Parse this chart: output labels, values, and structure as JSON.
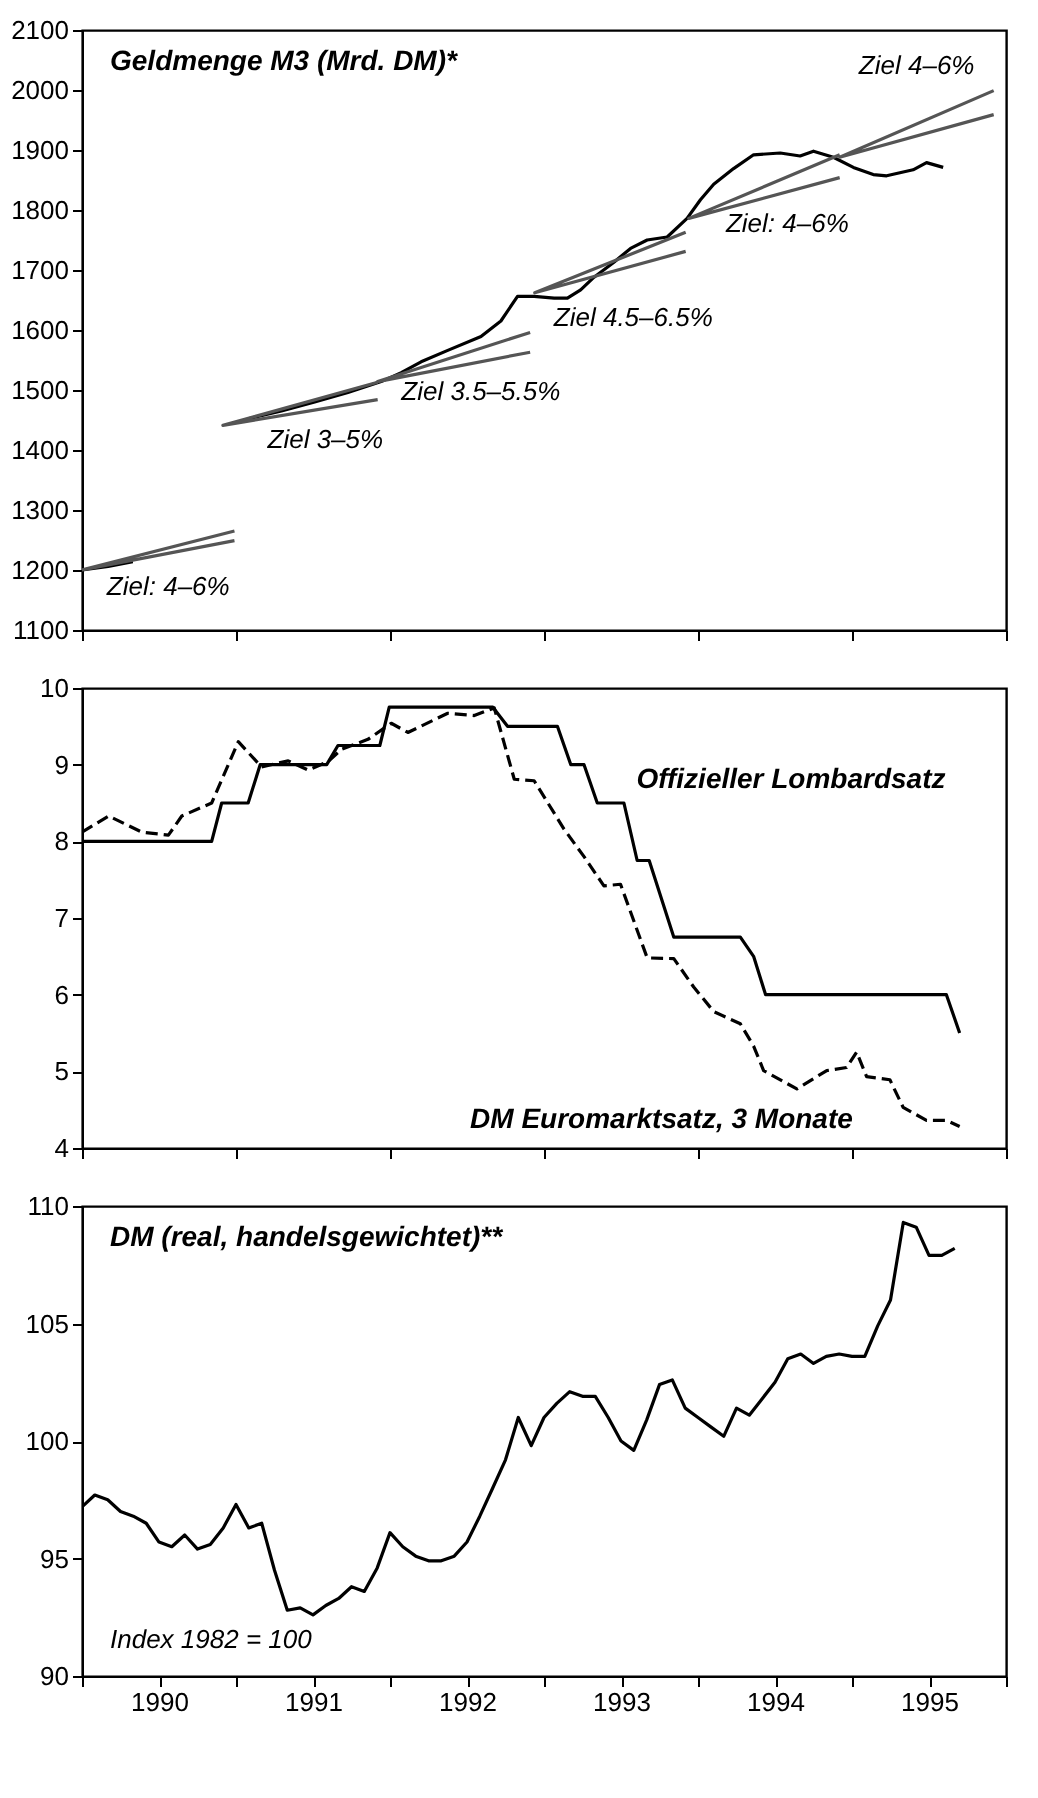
{
  "chart_data": [
    {
      "type": "line",
      "title": "Geldmenge M3 (Mrd. DM)*",
      "xlim": [
        1990,
        1996
      ],
      "ylim": [
        1100,
        2100
      ],
      "yticks": [
        1100,
        1200,
        1300,
        1400,
        1500,
        1600,
        1700,
        1800,
        1900,
        2000,
        2100
      ],
      "xticks": [
        {
          "value": 1990,
          "label": null
        },
        {
          "value": 1991,
          "label": null
        },
        {
          "value": 1992,
          "label": null
        },
        {
          "value": 1993,
          "label": null
        },
        {
          "value": 1994,
          "label": null
        },
        {
          "value": 1995,
          "label": null
        },
        {
          "value": 1996,
          "label": null
        }
      ],
      "tick_labels": "y",
      "grid": false,
      "legend": false,
      "series": [
        {
          "color": "#000000",
          "line_style": "solid",
          "x": [
            1990.0,
            1990.17,
            1990.33,
            1990.915,
            1991.079,
            1991.295,
            1991.511,
            1991.727,
            1991.943,
            1992.073,
            1992.202,
            1992.375,
            1992.591,
            1992.72,
            1992.828,
            1992.936,
            1993.066,
            1993.152,
            1993.238,
            1993.325,
            1993.454,
            1993.562,
            1993.67,
            1993.8,
            1993.929,
            1994.016,
            1994.102,
            1994.231,
            1994.361,
            1994.534,
            1994.663,
            1994.75,
            1994.879,
            1995.009,
            1995.138,
            1995.225,
            1995.397,
            1995.484,
            1995.592
          ],
          "values": [
            1200,
            1206,
            1214,
            null,
            1452,
            1465,
            1480,
            1496,
            1514,
            1529,
            1547,
            1566,
            1589,
            1615,
            1656,
            1656,
            1653,
            1653,
            1667,
            1688,
            1713,
            1736,
            1750,
            1755,
            1786,
            1817,
            1843,
            1869,
            1892,
            1895,
            1890,
            1898,
            1888,
            1871,
            1859,
            1857,
            1867,
            1879,
            1871
          ]
        },
        {
          "color": "#555555",
          "line_style": "solid",
          "x": [
            1990.99,
            1990.0,
            1990.99
          ],
          "values": [
            1265,
            1200,
            1249
          ]
        },
        {
          "color": "#555555",
          "line_style": "solid",
          "x": [
            1991.92,
            1990.915,
            1991.92
          ],
          "values": [
            1513,
            1441,
            1484
          ]
        },
        {
          "color": "#555555",
          "line_style": "solid",
          "x": [
            1992.91,
            1991.92,
            1992.91
          ],
          "values": [
            1596,
            1514,
            1563
          ]
        },
        {
          "color": "#555555",
          "line_style": "solid",
          "x": [
            1993.92,
            1992.94,
            1993.92
          ],
          "values": [
            1763,
            1662,
            1731
          ]
        },
        {
          "color": "#555555",
          "line_style": "solid",
          "x": [
            1994.92,
            1993.94,
            1994.92
          ],
          "values": [
            1892,
            1786,
            1854
          ]
        },
        {
          "color": "#555555",
          "line_style": "solid",
          "x": [
            1995.92,
            1994.92,
            1995.92
          ],
          "values": [
            1999,
            1888,
            1959
          ]
        }
      ],
      "annotations": [
        {
          "text": "Ziel: 4–6%",
          "x": 1990.56,
          "y": 1228
        },
        {
          "text": "Ziel 3–5%",
          "x": 1991.58,
          "y": 1470
        },
        {
          "text": "Ziel 3.5–5.5%",
          "x": 1992.59,
          "y": 1547
        },
        {
          "text": "Ziel 4.5–6.5%",
          "x": 1993.58,
          "y": 1707
        },
        {
          "text": "Ziel: 4–6%",
          "x": 1994.58,
          "y": 1830
        },
        {
          "text": "Ziel 4–6%",
          "x": 1995.42,
          "y": 1944
        }
      ]
    },
    {
      "type": "line",
      "xlim": [
        1990,
        1996
      ],
      "ylim": [
        4,
        10
      ],
      "yticks": [
        4,
        5,
        6,
        7,
        8,
        9,
        10
      ],
      "xticks": [
        {
          "value": 1990,
          "label": null
        },
        {
          "value": 1991,
          "label": null
        },
        {
          "value": 1992,
          "label": null
        },
        {
          "value": 1993,
          "label": null
        },
        {
          "value": 1994,
          "label": null
        },
        {
          "value": 1995,
          "label": null
        },
        {
          "value": 1996,
          "label": null
        }
      ],
      "tick_labels": "y",
      "grid": false,
      "legend": false,
      "series": [
        {
          "name": "Offizieller Lombardsatz",
          "color": "#000000",
          "line_style": "solid",
          "x": [
            1990.0,
            1990.842,
            1990.907,
            1991.079,
            1991.157,
            1991.589,
            1991.662,
            1991.934,
            1991.995,
            1992.668,
            1992.763,
            1993.087,
            1993.174,
            1993.26,
            1993.346,
            1993.519,
            1993.605,
            1993.683,
            1993.843,
            1994.275,
            1994.361,
            1994.439,
            1995.613,
            1995.699
          ],
          "values": [
            8.0,
            8.0,
            8.5,
            8.5,
            9.0,
            9.0,
            9.25,
            9.25,
            9.75,
            9.75,
            9.5,
            9.5,
            9.0,
            9.0,
            8.5,
            8.5,
            7.75,
            7.75,
            6.75,
            6.75,
            6.5,
            6.0,
            6.0,
            5.5
          ]
        },
        {
          "name": "DM Euromarktsatz, 3 Monate",
          "color": "#000000",
          "line_style": "dashed",
          "x": [
            1990.0,
            1990.173,
            1990.389,
            1990.561,
            1990.648,
            1990.842,
            1991.015,
            1991.166,
            1991.339,
            1991.468,
            1991.598,
            1991.684,
            1991.857,
            1992.008,
            1992.116,
            1992.375,
            1992.547,
            1992.677,
            1992.807,
            1992.936,
            1993.13,
            1993.26,
            1993.389,
            1993.497,
            1993.67,
            1993.843,
            1993.972,
            1994.102,
            1994.275,
            1994.361,
            1994.426,
            1994.642,
            1994.836,
            1994.965,
            1995.03,
            1995.095,
            1995.246,
            1995.332,
            1995.484,
            1995.613,
            1995.699
          ],
          "values": [
            8.12,
            8.33,
            8.12,
            8.08,
            8.33,
            8.5,
            9.3,
            8.97,
            9.05,
            8.93,
            9.04,
            9.2,
            9.33,
            9.54,
            9.42,
            9.67,
            9.64,
            9.74,
            8.81,
            8.79,
            8.16,
            7.8,
            7.42,
            7.44,
            6.48,
            6.47,
            6.1,
            5.78,
            5.62,
            5.33,
            5.01,
            4.77,
            5.01,
            5.05,
            5.25,
            4.93,
            4.89,
            4.53,
            4.36,
            4.36,
            4.28
          ]
        }
      ]
    },
    {
      "type": "line",
      "title": "DM (real, handelsgewichtet)**",
      "xlim": [
        1990,
        1996
      ],
      "ylim": [
        90,
        110
      ],
      "yticks": [
        90,
        95,
        100,
        105,
        110
      ],
      "xticks": [
        {
          "value": 1990,
          "label": null
        },
        {
          "value": 1990.5,
          "label": "1990"
        },
        {
          "value": 1991,
          "label": null
        },
        {
          "value": 1991.5,
          "label": "1991"
        },
        {
          "value": 1992,
          "label": null
        },
        {
          "value": 1992.5,
          "label": "1992"
        },
        {
          "value": 1993,
          "label": null
        },
        {
          "value": 1993.5,
          "label": "1993"
        },
        {
          "value": 1994,
          "label": null
        },
        {
          "value": 1994.5,
          "label": "1994"
        },
        {
          "value": 1995,
          "label": null
        },
        {
          "value": 1995.5,
          "label": "1995"
        },
        {
          "value": 1996,
          "label": null
        }
      ],
      "grid": false,
      "legend": false,
      "series": [
        {
          "color": "#000000",
          "line_style": "solid",
          "x": [
            1990.0,
            1990.083,
            1990.167,
            1990.25,
            1990.333,
            1990.417,
            1990.5,
            1990.583,
            1990.667,
            1990.75,
            1990.833,
            1990.917,
            1991.0,
            1991.083,
            1991.167,
            1991.25,
            1991.333,
            1991.417,
            1991.5,
            1991.583,
            1991.667,
            1991.75,
            1991.833,
            1991.917,
            1992.0,
            1992.083,
            1992.167,
            1992.25,
            1992.333,
            1992.417,
            1992.5,
            1992.583,
            1992.667,
            1992.75,
            1992.833,
            1992.917,
            1993.0,
            1993.083,
            1993.167,
            1993.25,
            1993.333,
            1993.417,
            1993.5,
            1993.583,
            1993.667,
            1993.75,
            1993.833,
            1993.917,
            1994.0,
            1994.083,
            1994.167,
            1994.25,
            1994.333,
            1994.417,
            1994.5,
            1994.583,
            1994.667,
            1994.75,
            1994.833,
            1994.917,
            1995.0,
            1995.083,
            1995.167,
            1995.25,
            1995.333,
            1995.417,
            1995.5,
            1995.583,
            1995.667
          ],
          "values": [
            97.2,
            97.7,
            97.5,
            97.0,
            96.8,
            96.5,
            95.7,
            95.5,
            96.0,
            95.4,
            95.6,
            96.3,
            97.3,
            96.3,
            96.5,
            94.5,
            92.8,
            92.9,
            92.6,
            93.0,
            93.3,
            93.8,
            93.6,
            94.6,
            96.1,
            95.5,
            95.1,
            94.9,
            94.9,
            95.1,
            95.7,
            96.8,
            98.0,
            99.2,
            101.0,
            99.8,
            101.0,
            101.6,
            102.1,
            101.9,
            101.9,
            101.0,
            100.0,
            99.6,
            100.9,
            102.4,
            102.6,
            101.4,
            101.0,
            100.6,
            100.2,
            101.4,
            101.1,
            101.8,
            102.5,
            103.5,
            103.7,
            103.3,
            103.6,
            103.7,
            103.6,
            103.6,
            104.9,
            106.0,
            109.3,
            109.1,
            107.9,
            107.9,
            108.2
          ]
        }
      ],
      "annotations": [
        "Index 1982 = 100"
      ]
    }
  ]
}
